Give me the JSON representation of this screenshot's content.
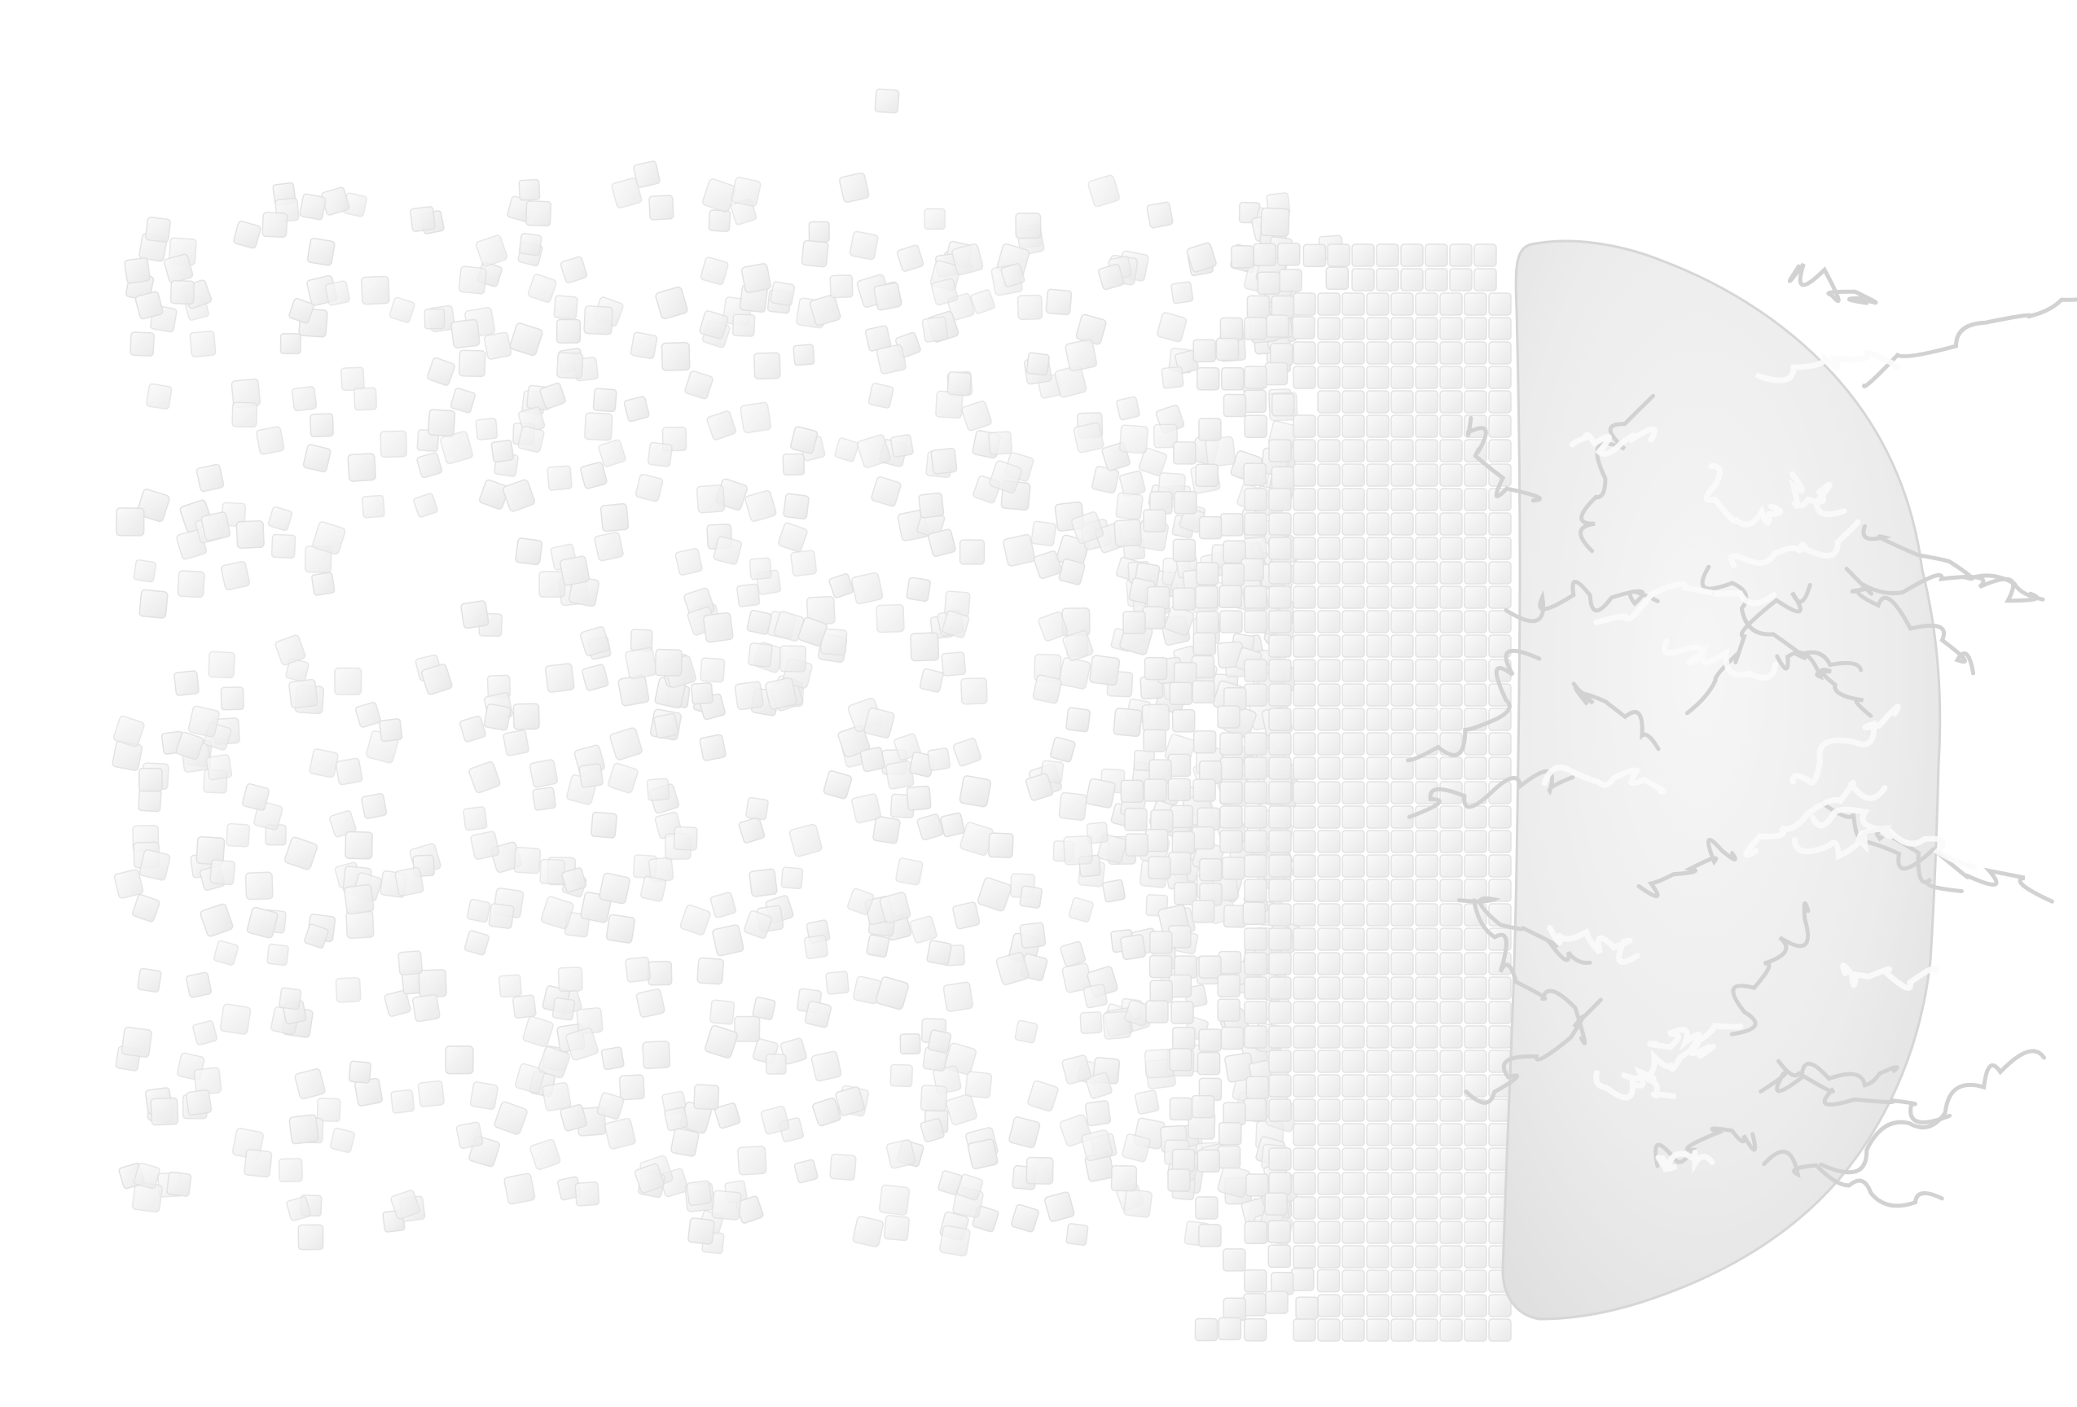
{
  "image": {
    "background_color": "#ffffff",
    "palette": {
      "cube_face": "#f1f1f1",
      "cube_edge": "#e1e1e1",
      "cube_highlight": "#fafafa",
      "brain_base": "#ececec",
      "brain_fold": "#dcdcdc",
      "brain_highlight": "#f8f8f8"
    },
    "subjects": [
      {
        "name": "brain-hemisphere"
      },
      {
        "name": "voxel-cube-grid"
      },
      {
        "name": "scattered-cube-particles"
      }
    ]
  }
}
